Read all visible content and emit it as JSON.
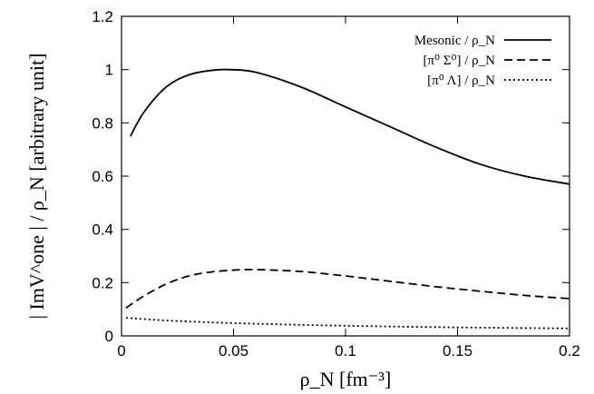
{
  "chart_data": {
    "type": "line",
    "title": "",
    "xlabel": "ρ_N [fm⁻³]",
    "ylabel": "| ImV^one | / ρ_N [arbitrary unit]",
    "xlim": [
      0,
      0.2
    ],
    "ylim": [
      0,
      1.2
    ],
    "x_ticks": [
      "0",
      "0.05",
      "0.1",
      "0.15",
      "0.2"
    ],
    "y_ticks": [
      "0",
      "0.2",
      "0.4",
      "0.6",
      "0.8",
      "1",
      "1.2"
    ],
    "legend_position": "top-right",
    "grid": false,
    "series": [
      {
        "name": "Mesonic / ρ_N",
        "dash": "solid",
        "x": [
          0.004,
          0.01,
          0.02,
          0.03,
          0.04,
          0.048,
          0.06,
          0.08,
          0.1,
          0.12,
          0.14,
          0.16,
          0.18,
          0.2
        ],
        "y": [
          0.75,
          0.84,
          0.935,
          0.98,
          0.997,
          1.0,
          0.99,
          0.935,
          0.86,
          0.785,
          0.71,
          0.645,
          0.6,
          0.57
        ]
      },
      {
        "name": "[π⁰ Σ⁰] / ρ_N",
        "dash": "dashed",
        "x": [
          0.002,
          0.01,
          0.02,
          0.03,
          0.04,
          0.05,
          0.06,
          0.08,
          0.1,
          0.12,
          0.14,
          0.16,
          0.18,
          0.2
        ],
        "y": [
          0.105,
          0.15,
          0.195,
          0.225,
          0.24,
          0.247,
          0.249,
          0.242,
          0.225,
          0.205,
          0.185,
          0.168,
          0.152,
          0.14
        ]
      },
      {
        "name": "[π⁰ Λ] / ρ_N",
        "dash": "dotted",
        "x": [
          0.002,
          0.02,
          0.05,
          0.1,
          0.15,
          0.2
        ],
        "y": [
          0.068,
          0.058,
          0.048,
          0.038,
          0.032,
          0.028
        ]
      }
    ]
  }
}
